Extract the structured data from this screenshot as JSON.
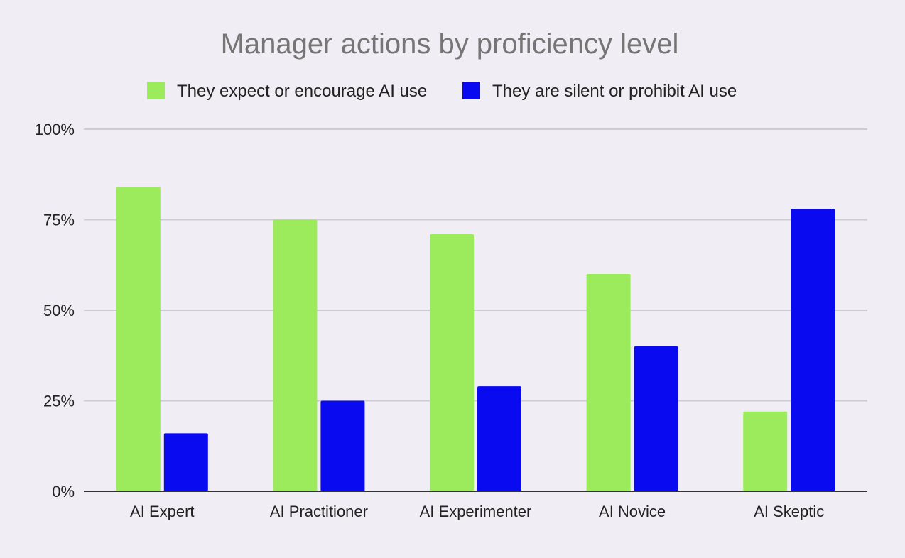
{
  "chart_data": {
    "type": "bar",
    "title": "Manager actions by proficiency level",
    "categories": [
      "AI Expert",
      "AI Practitioner",
      "AI Experimenter",
      "AI Novice",
      "AI Skeptic"
    ],
    "series": [
      {
        "name": "They expect or encourage AI use",
        "color": "#9ceb5c",
        "values": [
          84,
          75,
          71,
          60,
          22
        ]
      },
      {
        "name": "They are silent or prohibit AI use",
        "color": "#0a0af0",
        "values": [
          16,
          25,
          29,
          40,
          78
        ]
      }
    ],
    "ylim": [
      0,
      100
    ],
    "yticks": [
      0,
      25,
      50,
      75,
      100
    ],
    "ytick_labels": [
      "0%",
      "25%",
      "50%",
      "75%",
      "100%"
    ],
    "xlabel": "",
    "ylabel": "",
    "grid": true,
    "legend_position": "top"
  }
}
